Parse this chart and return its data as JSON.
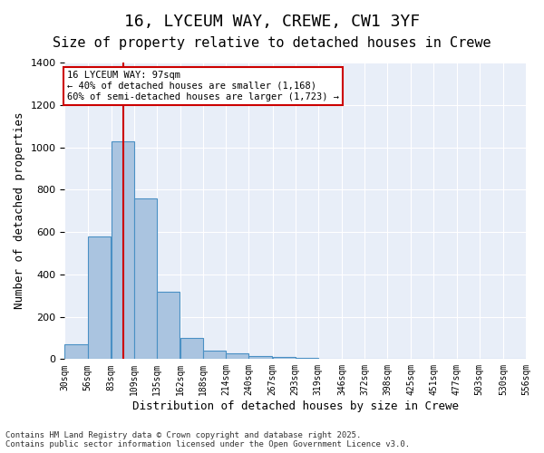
{
  "title1": "16, LYCEUM WAY, CREWE, CW1 3YF",
  "title2": "Size of property relative to detached houses in Crewe",
  "xlabel": "Distribution of detached houses by size in Crewe",
  "ylabel": "Number of detached properties",
  "bin_labels": [
    "30sqm",
    "56sqm",
    "83sqm",
    "109sqm",
    "135sqm",
    "162sqm",
    "188sqm",
    "214sqm",
    "240sqm",
    "267sqm",
    "293sqm",
    "319sqm",
    "346sqm",
    "372sqm",
    "398sqm",
    "425sqm",
    "451sqm",
    "477sqm",
    "503sqm",
    "530sqm",
    "556sqm"
  ],
  "bin_edges": [
    30,
    56,
    83,
    109,
    135,
    162,
    188,
    214,
    240,
    267,
    293,
    319,
    346,
    372,
    398,
    425,
    451,
    477,
    503,
    530,
    556
  ],
  "bar_heights": [
    70,
    580,
    1030,
    760,
    320,
    100,
    40,
    25,
    15,
    8,
    5,
    3,
    2,
    2,
    1,
    1,
    1,
    1,
    1,
    1
  ],
  "bar_color": "#aac4e0",
  "bar_edge_color": "#4a90c4",
  "property_size": 97,
  "red_line_color": "#cc0000",
  "annotation_text": "16 LYCEUM WAY: 97sqm\n← 40% of detached houses are smaller (1,168)\n60% of semi-detached houses are larger (1,723) →",
  "annotation_box_color": "#ffffff",
  "annotation_box_edge": "#cc0000",
  "background_color": "#e8eef8",
  "ylim": [
    0,
    1400
  ],
  "footer_text": "Contains HM Land Registry data © Crown copyright and database right 2025.\nContains public sector information licensed under the Open Government Licence v3.0.",
  "title1_fontsize": 13,
  "title2_fontsize": 11,
  "xlabel_fontsize": 9,
  "ylabel_fontsize": 9
}
